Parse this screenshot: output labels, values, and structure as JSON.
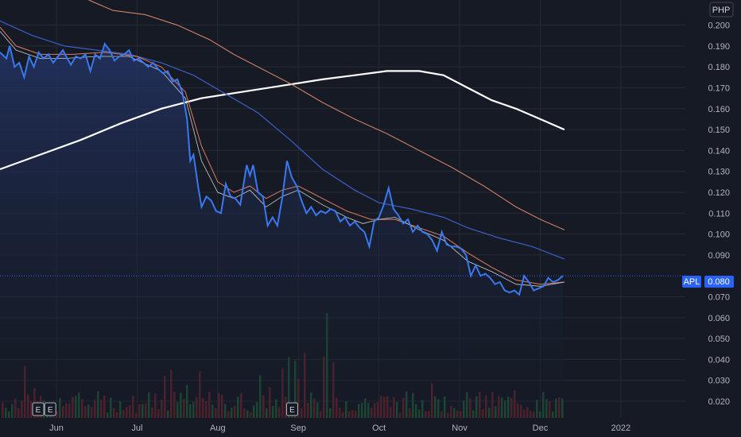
{
  "currency": "PHP",
  "symbol": "APL",
  "last_price": "0.080",
  "earnings_marker": "E",
  "colors": {
    "background": "#161a25",
    "price_line": "#3a78f0",
    "area_top": "#233466",
    "ma_white": "#ffffff",
    "ma_orange_slow": "#e38a6c",
    "ma_blue": "#3b5fc7",
    "ma_orange_fast": "#e07c5c",
    "ma_gray": "#c9cfc9",
    "volume_up": "#1f5e3a",
    "volume_down": "#6b2530",
    "badge": "#2962ff"
  },
  "chart_data": {
    "type": "line",
    "ylim": [
      0.012,
      0.212
    ],
    "y_ticks": [
      "0.200",
      "0.190",
      "0.180",
      "0.170",
      "0.160",
      "0.150",
      "0.140",
      "0.130",
      "0.120",
      "0.110",
      "0.100",
      "0.090",
      "0.070",
      "0.060",
      "0.050",
      "0.040",
      "0.030",
      "0.020"
    ],
    "x_ticks": [
      "Jun",
      "Jul",
      "Aug",
      "Sep",
      "Oct",
      "Nov",
      "Dec",
      "2022"
    ],
    "x_tick_pos": [
      0.5,
      1.5,
      2.5,
      3.5,
      4.5,
      5.5,
      6.5,
      7.5
    ],
    "x_range": [
      -0.2,
      8.3
    ],
    "earnings_x": [
      -0.2,
      -0.05,
      2.95
    ],
    "series": [
      {
        "key": "price",
        "points": [
          [
            -0.2,
            0.187
          ],
          [
            -0.12,
            0.184
          ],
          [
            -0.08,
            0.19
          ],
          [
            -0.02,
            0.18
          ],
          [
            0.04,
            0.182
          ],
          [
            0.1,
            0.175
          ],
          [
            0.16,
            0.185
          ],
          [
            0.22,
            0.18
          ],
          [
            0.28,
            0.187
          ],
          [
            0.34,
            0.184
          ],
          [
            0.4,
            0.186
          ],
          [
            0.46,
            0.182
          ],
          [
            0.52,
            0.185
          ],
          [
            0.58,
            0.188
          ],
          [
            0.62,
            0.185
          ],
          [
            0.68,
            0.181
          ],
          [
            0.74,
            0.185
          ],
          [
            0.8,
            0.184
          ],
          [
            0.86,
            0.186
          ],
          [
            0.92,
            0.178
          ],
          [
            0.98,
            0.186
          ],
          [
            1.04,
            0.184
          ],
          [
            1.1,
            0.191
          ],
          [
            1.16,
            0.188
          ],
          [
            1.22,
            0.183
          ],
          [
            1.28,
            0.185
          ],
          [
            1.34,
            0.186
          ],
          [
            1.4,
            0.188
          ],
          [
            1.46,
            0.183
          ],
          [
            1.52,
            0.184
          ],
          [
            1.58,
            0.182
          ],
          [
            1.64,
            0.18
          ],
          [
            1.7,
            0.182
          ],
          [
            1.76,
            0.179
          ],
          [
            1.82,
            0.177
          ],
          [
            1.88,
            0.178
          ],
          [
            1.94,
            0.173
          ],
          [
            2.0,
            0.174
          ],
          [
            2.06,
            0.168
          ],
          [
            2.12,
            0.155
          ],
          [
            2.16,
            0.135
          ],
          [
            2.2,
            0.138
          ],
          [
            2.26,
            0.122
          ],
          [
            2.3,
            0.113
          ],
          [
            2.36,
            0.118
          ],
          [
            2.42,
            0.116
          ],
          [
            2.48,
            0.111
          ],
          [
            2.54,
            0.11
          ],
          [
            2.6,
            0.124
          ],
          [
            2.66,
            0.118
          ],
          [
            2.72,
            0.117
          ],
          [
            2.78,
            0.114
          ],
          [
            2.86,
            0.133
          ],
          [
            2.9,
            0.128
          ],
          [
            2.94,
            0.133
          ],
          [
            3.0,
            0.12
          ],
          [
            3.06,
            0.118
          ],
          [
            3.12,
            0.104
          ],
          [
            3.18,
            0.108
          ],
          [
            3.24,
            0.104
          ],
          [
            3.3,
            0.117
          ],
          [
            3.36,
            0.135
          ],
          [
            3.42,
            0.127
          ],
          [
            3.48,
            0.123
          ],
          [
            3.54,
            0.116
          ],
          [
            3.6,
            0.11
          ],
          [
            3.66,
            0.113
          ],
          [
            3.72,
            0.109
          ],
          [
            3.78,
            0.111
          ],
          [
            3.84,
            0.11
          ],
          [
            3.9,
            0.112
          ],
          [
            3.96,
            0.111
          ],
          [
            4.02,
            0.106
          ],
          [
            4.08,
            0.108
          ],
          [
            4.14,
            0.104
          ],
          [
            4.2,
            0.106
          ],
          [
            4.26,
            0.103
          ],
          [
            4.32,
            0.101
          ],
          [
            4.38,
            0.094
          ],
          [
            4.44,
            0.106
          ],
          [
            4.5,
            0.108
          ],
          [
            4.56,
            0.114
          ],
          [
            4.62,
            0.122
          ],
          [
            4.68,
            0.112
          ],
          [
            4.74,
            0.109
          ],
          [
            4.8,
            0.105
          ],
          [
            4.86,
            0.107
          ],
          [
            4.92,
            0.101
          ],
          [
            4.98,
            0.104
          ],
          [
            5.04,
            0.101
          ],
          [
            5.1,
            0.1
          ],
          [
            5.16,
            0.097
          ],
          [
            5.22,
            0.092
          ],
          [
            5.28,
            0.101
          ],
          [
            5.34,
            0.095
          ],
          [
            5.4,
            0.094
          ],
          [
            5.46,
            0.094
          ],
          [
            5.52,
            0.093
          ],
          [
            5.58,
            0.09
          ],
          [
            5.64,
            0.08
          ],
          [
            5.7,
            0.085
          ],
          [
            5.76,
            0.08
          ],
          [
            5.82,
            0.081
          ],
          [
            5.88,
            0.079
          ],
          [
            5.94,
            0.076
          ],
          [
            6.0,
            0.077
          ],
          [
            6.06,
            0.073
          ],
          [
            6.12,
            0.072
          ],
          [
            6.18,
            0.073
          ],
          [
            6.24,
            0.071
          ],
          [
            6.3,
            0.08
          ],
          [
            6.36,
            0.077
          ],
          [
            6.42,
            0.073
          ],
          [
            6.48,
            0.074
          ],
          [
            6.54,
            0.075
          ],
          [
            6.6,
            0.079
          ],
          [
            6.66,
            0.077
          ],
          [
            6.72,
            0.078
          ],
          [
            6.78,
            0.08
          ]
        ]
      },
      {
        "key": "ma_gray",
        "points": [
          [
            -0.2,
            0.197
          ],
          [
            0.0,
            0.188
          ],
          [
            0.3,
            0.184
          ],
          [
            0.6,
            0.184
          ],
          [
            1.0,
            0.185
          ],
          [
            1.4,
            0.185
          ],
          [
            1.8,
            0.178
          ],
          [
            2.1,
            0.165
          ],
          [
            2.3,
            0.135
          ],
          [
            2.5,
            0.12
          ],
          [
            2.7,
            0.117
          ],
          [
            2.9,
            0.121
          ],
          [
            3.1,
            0.113
          ],
          [
            3.3,
            0.118
          ],
          [
            3.5,
            0.121
          ],
          [
            3.8,
            0.114
          ],
          [
            4.1,
            0.108
          ],
          [
            4.3,
            0.105
          ],
          [
            4.5,
            0.107
          ],
          [
            4.7,
            0.108
          ],
          [
            5.0,
            0.102
          ],
          [
            5.3,
            0.097
          ],
          [
            5.6,
            0.087
          ],
          [
            5.9,
            0.082
          ],
          [
            6.2,
            0.076
          ],
          [
            6.5,
            0.075
          ],
          [
            6.8,
            0.077
          ]
        ]
      },
      {
        "key": "ma_orange_fast",
        "points": [
          [
            -0.2,
            0.199
          ],
          [
            0.0,
            0.19
          ],
          [
            0.3,
            0.186
          ],
          [
            0.7,
            0.186
          ],
          [
            1.1,
            0.187
          ],
          [
            1.5,
            0.185
          ],
          [
            1.8,
            0.18
          ],
          [
            2.1,
            0.168
          ],
          [
            2.3,
            0.142
          ],
          [
            2.5,
            0.125
          ],
          [
            2.7,
            0.12
          ],
          [
            2.9,
            0.123
          ],
          [
            3.1,
            0.117
          ],
          [
            3.3,
            0.121
          ],
          [
            3.5,
            0.123
          ],
          [
            3.8,
            0.117
          ],
          [
            4.1,
            0.111
          ],
          [
            4.4,
            0.107
          ],
          [
            4.7,
            0.107
          ],
          [
            5.0,
            0.103
          ],
          [
            5.3,
            0.099
          ],
          [
            5.6,
            0.091
          ],
          [
            5.9,
            0.084
          ],
          [
            6.2,
            0.078
          ],
          [
            6.5,
            0.076
          ],
          [
            6.8,
            0.077
          ]
        ]
      },
      {
        "key": "ma_blue",
        "points": [
          [
            -0.2,
            0.202
          ],
          [
            0.2,
            0.195
          ],
          [
            0.6,
            0.19
          ],
          [
            1.0,
            0.188
          ],
          [
            1.4,
            0.186
          ],
          [
            1.8,
            0.182
          ],
          [
            2.2,
            0.176
          ],
          [
            2.6,
            0.167
          ],
          [
            3.0,
            0.158
          ],
          [
            3.4,
            0.145
          ],
          [
            3.8,
            0.131
          ],
          [
            4.2,
            0.121
          ],
          [
            4.5,
            0.115
          ],
          [
            4.9,
            0.112
          ],
          [
            5.3,
            0.108
          ],
          [
            5.6,
            0.103
          ],
          [
            6.0,
            0.098
          ],
          [
            6.4,
            0.094
          ],
          [
            6.8,
            0.088
          ]
        ]
      },
      {
        "key": "ma_orange_slow",
        "points": [
          [
            0.9,
            0.212
          ],
          [
            1.2,
            0.207
          ],
          [
            1.6,
            0.205
          ],
          [
            2.0,
            0.2
          ],
          [
            2.4,
            0.193
          ],
          [
            2.7,
            0.186
          ],
          [
            3.0,
            0.18
          ],
          [
            3.4,
            0.172
          ],
          [
            3.8,
            0.163
          ],
          [
            4.2,
            0.155
          ],
          [
            4.6,
            0.148
          ],
          [
            5.0,
            0.14
          ],
          [
            5.4,
            0.132
          ],
          [
            5.8,
            0.123
          ],
          [
            6.2,
            0.113
          ],
          [
            6.5,
            0.107
          ],
          [
            6.8,
            0.102
          ]
        ]
      },
      {
        "key": "ma_white",
        "points": [
          [
            -0.2,
            0.131
          ],
          [
            0.3,
            0.138
          ],
          [
            0.8,
            0.145
          ],
          [
            1.3,
            0.153
          ],
          [
            1.8,
            0.16
          ],
          [
            2.3,
            0.165
          ],
          [
            2.8,
            0.168
          ],
          [
            3.3,
            0.171
          ],
          [
            3.8,
            0.174
          ],
          [
            4.2,
            0.176
          ],
          [
            4.6,
            0.178
          ],
          [
            5.0,
            0.178
          ],
          [
            5.3,
            0.176
          ],
          [
            5.6,
            0.17
          ],
          [
            5.9,
            0.164
          ],
          [
            6.2,
            0.16
          ],
          [
            6.5,
            0.155
          ],
          [
            6.8,
            0.15
          ]
        ]
      }
    ]
  }
}
